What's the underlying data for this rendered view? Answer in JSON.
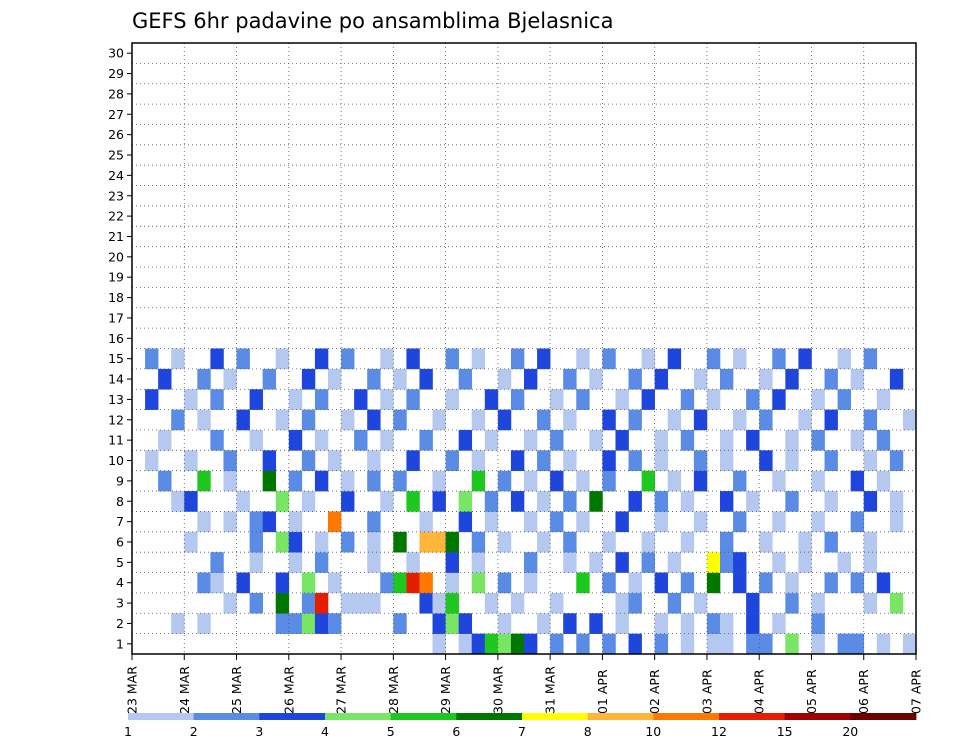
{
  "chart_data": {
    "type": "heatmap",
    "title": "GEFS 6hr padavine po ansamblima Bjelasnica",
    "x_tick_labels": [
      "23 MAR",
      "24 MAR",
      "25 MAR",
      "26 MAR",
      "27 MAR",
      "28 MAR",
      "29 MAR",
      "30 MAR",
      "31 MAR",
      "01 APR",
      "02 APR",
      "03 APR",
      "04 APR",
      "05 APR",
      "06 APR",
      "07 APR"
    ],
    "y_tick_labels": [
      "1",
      "2",
      "3",
      "4",
      "5",
      "6",
      "7",
      "8",
      "9",
      "10",
      "11",
      "12",
      "13",
      "14",
      "15",
      "16",
      "17",
      "18",
      "19",
      "20",
      "21",
      "22",
      "23",
      "24",
      "25",
      "26",
      "27",
      "28",
      "29",
      "30"
    ],
    "ylim": [
      0.5,
      30.5
    ],
    "x_axis": {
      "start": "23 MAR",
      "end": "07 APR",
      "step_hours": 6,
      "steps": 60
    },
    "grid": true,
    "legend_placement": "bottom",
    "legend": {
      "boundaries": [
        "1",
        "2",
        "3",
        "4",
        "5",
        "6",
        "7",
        "8",
        "10",
        "12",
        "15",
        "20"
      ],
      "colors": [
        "#b4c8f0",
        "#5a8ce6",
        "#1e46dc",
        "#78e664",
        "#1ec81e",
        "#007800",
        "#ffff00",
        "#ffb43c",
        "#ff7800",
        "#e61e00",
        "#a00000",
        "#6e0000"
      ]
    },
    "cells": [
      [
        1,
        23,
        0
      ],
      [
        1,
        25,
        0
      ],
      [
        1,
        26,
        2
      ],
      [
        1,
        27,
        4
      ],
      [
        1,
        28,
        3
      ],
      [
        1,
        29,
        5
      ],
      [
        1,
        30,
        2
      ],
      [
        1,
        32,
        1
      ],
      [
        1,
        34,
        1
      ],
      [
        1,
        36,
        1
      ],
      [
        1,
        38,
        2
      ],
      [
        1,
        40,
        1
      ],
      [
        1,
        42,
        0
      ],
      [
        1,
        44,
        0
      ],
      [
        1,
        45,
        0
      ],
      [
        1,
        47,
        1
      ],
      [
        1,
        48,
        1
      ],
      [
        1,
        50,
        3
      ],
      [
        1,
        52,
        0
      ],
      [
        1,
        54,
        1
      ],
      [
        1,
        55,
        1
      ],
      [
        1,
        57,
        0
      ],
      [
        1,
        59,
        0
      ],
      [
        2,
        3,
        0
      ],
      [
        2,
        5,
        0
      ],
      [
        2,
        11,
        1
      ],
      [
        2,
        12,
        1
      ],
      [
        2,
        13,
        3
      ],
      [
        2,
        14,
        2
      ],
      [
        2,
        15,
        1
      ],
      [
        2,
        20,
        1
      ],
      [
        2,
        23,
        2
      ],
      [
        2,
        24,
        3
      ],
      [
        2,
        25,
        2
      ],
      [
        2,
        28,
        0
      ],
      [
        2,
        31,
        0
      ],
      [
        2,
        33,
        2
      ],
      [
        2,
        35,
        2
      ],
      [
        2,
        37,
        0
      ],
      [
        2,
        40,
        0
      ],
      [
        2,
        42,
        0
      ],
      [
        2,
        44,
        1
      ],
      [
        2,
        45,
        0
      ],
      [
        2,
        47,
        2
      ],
      [
        2,
        49,
        0
      ],
      [
        2,
        52,
        1
      ],
      [
        3,
        7,
        0
      ],
      [
        3,
        9,
        1
      ],
      [
        3,
        11,
        5
      ],
      [
        3,
        13,
        1
      ],
      [
        3,
        14,
        9
      ],
      [
        3,
        16,
        0
      ],
      [
        3,
        17,
        0
      ],
      [
        3,
        18,
        0
      ],
      [
        3,
        22,
        2
      ],
      [
        3,
        23,
        0
      ],
      [
        3,
        24,
        4
      ],
      [
        3,
        27,
        0
      ],
      [
        3,
        29,
        0
      ],
      [
        3,
        32,
        0
      ],
      [
        3,
        37,
        0
      ],
      [
        3,
        38,
        1
      ],
      [
        3,
        41,
        1
      ],
      [
        3,
        43,
        0
      ],
      [
        3,
        47,
        2
      ],
      [
        3,
        50,
        1
      ],
      [
        3,
        52,
        0
      ],
      [
        3,
        56,
        0
      ],
      [
        3,
        58,
        3
      ],
      [
        4,
        5,
        1
      ],
      [
        4,
        6,
        0
      ],
      [
        4,
        8,
        2
      ],
      [
        4,
        11,
        2
      ],
      [
        4,
        13,
        3
      ],
      [
        4,
        15,
        0
      ],
      [
        4,
        19,
        1
      ],
      [
        4,
        20,
        4
      ],
      [
        4,
        21,
        9
      ],
      [
        4,
        22,
        8
      ],
      [
        4,
        24,
        0
      ],
      [
        4,
        26,
        3
      ],
      [
        4,
        28,
        1
      ],
      [
        4,
        30,
        0
      ],
      [
        4,
        34,
        4
      ],
      [
        4,
        36,
        1
      ],
      [
        4,
        38,
        0
      ],
      [
        4,
        40,
        2
      ],
      [
        4,
        42,
        1
      ],
      [
        4,
        44,
        5
      ],
      [
        4,
        46,
        2
      ],
      [
        4,
        48,
        1
      ],
      [
        4,
        50,
        0
      ],
      [
        4,
        53,
        1
      ],
      [
        4,
        55,
        1
      ],
      [
        4,
        57,
        2
      ],
      [
        5,
        6,
        1
      ],
      [
        5,
        9,
        0
      ],
      [
        5,
        12,
        0
      ],
      [
        5,
        14,
        1
      ],
      [
        5,
        18,
        0
      ],
      [
        5,
        21,
        0
      ],
      [
        5,
        24,
        2
      ],
      [
        5,
        26,
        0
      ],
      [
        5,
        30,
        1
      ],
      [
        5,
        33,
        0
      ],
      [
        5,
        35,
        0
      ],
      [
        5,
        37,
        2
      ],
      [
        5,
        39,
        1
      ],
      [
        5,
        41,
        0
      ],
      [
        5,
        44,
        6
      ],
      [
        5,
        45,
        1
      ],
      [
        5,
        46,
        2
      ],
      [
        5,
        49,
        0
      ],
      [
        5,
        51,
        0
      ],
      [
        5,
        54,
        0
      ],
      [
        5,
        56,
        0
      ],
      [
        6,
        4,
        0
      ],
      [
        6,
        9,
        1
      ],
      [
        6,
        11,
        3
      ],
      [
        6,
        12,
        2
      ],
      [
        6,
        14,
        0
      ],
      [
        6,
        16,
        1
      ],
      [
        6,
        18,
        0
      ],
      [
        6,
        20,
        5
      ],
      [
        6,
        22,
        7
      ],
      [
        6,
        23,
        7
      ],
      [
        6,
        24,
        5
      ],
      [
        6,
        26,
        1
      ],
      [
        6,
        28,
        0
      ],
      [
        6,
        31,
        0
      ],
      [
        6,
        33,
        1
      ],
      [
        6,
        36,
        0
      ],
      [
        6,
        39,
        0
      ],
      [
        6,
        42,
        0
      ],
      [
        6,
        45,
        1
      ],
      [
        6,
        48,
        0
      ],
      [
        6,
        51,
        0
      ],
      [
        6,
        53,
        1
      ],
      [
        6,
        56,
        0
      ],
      [
        7,
        5,
        0
      ],
      [
        7,
        7,
        0
      ],
      [
        7,
        9,
        1
      ],
      [
        7,
        10,
        2
      ],
      [
        7,
        12,
        0
      ],
      [
        7,
        15,
        8
      ],
      [
        7,
        18,
        1
      ],
      [
        7,
        22,
        0
      ],
      [
        7,
        25,
        2
      ],
      [
        7,
        27,
        0
      ],
      [
        7,
        30,
        0
      ],
      [
        7,
        32,
        1
      ],
      [
        7,
        34,
        0
      ],
      [
        7,
        37,
        2
      ],
      [
        7,
        40,
        0
      ],
      [
        7,
        43,
        0
      ],
      [
        7,
        46,
        1
      ],
      [
        7,
        49,
        0
      ],
      [
        7,
        52,
        0
      ],
      [
        7,
        55,
        1
      ],
      [
        7,
        58,
        0
      ],
      [
        8,
        3,
        0
      ],
      [
        8,
        4,
        2
      ],
      [
        8,
        8,
        0
      ],
      [
        8,
        11,
        3
      ],
      [
        8,
        13,
        0
      ],
      [
        8,
        16,
        2
      ],
      [
        8,
        19,
        0
      ],
      [
        8,
        21,
        4
      ],
      [
        8,
        23,
        2
      ],
      [
        8,
        25,
        3
      ],
      [
        8,
        27,
        1
      ],
      [
        8,
        29,
        2
      ],
      [
        8,
        31,
        0
      ],
      [
        8,
        33,
        1
      ],
      [
        8,
        35,
        5
      ],
      [
        8,
        38,
        2
      ],
      [
        8,
        40,
        1
      ],
      [
        8,
        42,
        0
      ],
      [
        8,
        45,
        2
      ],
      [
        8,
        47,
        0
      ],
      [
        8,
        50,
        1
      ],
      [
        8,
        53,
        0
      ],
      [
        8,
        56,
        2
      ],
      [
        8,
        58,
        0
      ],
      [
        9,
        2,
        1
      ],
      [
        9,
        5,
        4
      ],
      [
        9,
        7,
        0
      ],
      [
        9,
        10,
        5
      ],
      [
        9,
        12,
        1
      ],
      [
        9,
        14,
        2
      ],
      [
        9,
        16,
        0
      ],
      [
        9,
        18,
        1
      ],
      [
        9,
        20,
        1
      ],
      [
        9,
        23,
        0
      ],
      [
        9,
        26,
        4
      ],
      [
        9,
        28,
        1
      ],
      [
        9,
        30,
        0
      ],
      [
        9,
        32,
        2
      ],
      [
        9,
        34,
        0
      ],
      [
        9,
        36,
        1
      ],
      [
        9,
        39,
        4
      ],
      [
        9,
        41,
        0
      ],
      [
        9,
        43,
        2
      ],
      [
        9,
        46,
        1
      ],
      [
        9,
        49,
        0
      ],
      [
        9,
        52,
        0
      ],
      [
        9,
        55,
        2
      ],
      [
        9,
        57,
        0
      ],
      [
        10,
        1,
        0
      ],
      [
        10,
        4,
        0
      ],
      [
        10,
        7,
        1
      ],
      [
        10,
        10,
        2
      ],
      [
        10,
        13,
        1
      ],
      [
        10,
        15,
        0
      ],
      [
        10,
        18,
        0
      ],
      [
        10,
        21,
        2
      ],
      [
        10,
        24,
        1
      ],
      [
        10,
        26,
        0
      ],
      [
        10,
        29,
        2
      ],
      [
        10,
        31,
        1
      ],
      [
        10,
        33,
        0
      ],
      [
        10,
        36,
        2
      ],
      [
        10,
        38,
        1
      ],
      [
        10,
        40,
        0
      ],
      [
        10,
        43,
        1
      ],
      [
        10,
        45,
        0
      ],
      [
        10,
        48,
        2
      ],
      [
        10,
        50,
        0
      ],
      [
        10,
        53,
        1
      ],
      [
        10,
        56,
        0
      ],
      [
        10,
        58,
        1
      ],
      [
        11,
        2,
        0
      ],
      [
        11,
        6,
        1
      ],
      [
        11,
        9,
        0
      ],
      [
        11,
        12,
        2
      ],
      [
        11,
        14,
        0
      ],
      [
        11,
        17,
        1
      ],
      [
        11,
        19,
        0
      ],
      [
        11,
        22,
        1
      ],
      [
        11,
        25,
        2
      ],
      [
        11,
        27,
        0
      ],
      [
        11,
        30,
        0
      ],
      [
        11,
        32,
        1
      ],
      [
        11,
        35,
        0
      ],
      [
        11,
        37,
        2
      ],
      [
        11,
        40,
        0
      ],
      [
        11,
        42,
        1
      ],
      [
        11,
        45,
        0
      ],
      [
        11,
        47,
        2
      ],
      [
        11,
        50,
        0
      ],
      [
        11,
        52,
        1
      ],
      [
        11,
        55,
        0
      ],
      [
        11,
        57,
        1
      ],
      [
        12,
        3,
        1
      ],
      [
        12,
        5,
        0
      ],
      [
        12,
        8,
        2
      ],
      [
        12,
        11,
        0
      ],
      [
        12,
        13,
        1
      ],
      [
        12,
        16,
        0
      ],
      [
        12,
        18,
        2
      ],
      [
        12,
        20,
        1
      ],
      [
        12,
        23,
        0
      ],
      [
        12,
        26,
        0
      ],
      [
        12,
        28,
        2
      ],
      [
        12,
        31,
        1
      ],
      [
        12,
        33,
        0
      ],
      [
        12,
        36,
        2
      ],
      [
        12,
        38,
        1
      ],
      [
        12,
        41,
        0
      ],
      [
        12,
        43,
        2
      ],
      [
        12,
        46,
        0
      ],
      [
        12,
        48,
        1
      ],
      [
        12,
        51,
        0
      ],
      [
        12,
        53,
        2
      ],
      [
        12,
        56,
        1
      ],
      [
        12,
        59,
        0
      ],
      [
        13,
        1,
        2
      ],
      [
        13,
        4,
        0
      ],
      [
        13,
        6,
        1
      ],
      [
        13,
        9,
        2
      ],
      [
        13,
        12,
        0
      ],
      [
        13,
        14,
        1
      ],
      [
        13,
        17,
        2
      ],
      [
        13,
        19,
        0
      ],
      [
        13,
        21,
        1
      ],
      [
        13,
        24,
        0
      ],
      [
        13,
        27,
        2
      ],
      [
        13,
        29,
        1
      ],
      [
        13,
        32,
        0
      ],
      [
        13,
        34,
        1
      ],
      [
        13,
        37,
        0
      ],
      [
        13,
        39,
        2
      ],
      [
        13,
        42,
        1
      ],
      [
        13,
        44,
        0
      ],
      [
        13,
        47,
        1
      ],
      [
        13,
        49,
        2
      ],
      [
        13,
        52,
        0
      ],
      [
        13,
        54,
        1
      ],
      [
        13,
        57,
        0
      ],
      [
        14,
        2,
        2
      ],
      [
        14,
        5,
        1
      ],
      [
        14,
        7,
        0
      ],
      [
        14,
        10,
        1
      ],
      [
        14,
        13,
        2
      ],
      [
        14,
        15,
        0
      ],
      [
        14,
        18,
        1
      ],
      [
        14,
        20,
        0
      ],
      [
        14,
        22,
        2
      ],
      [
        14,
        25,
        1
      ],
      [
        14,
        28,
        0
      ],
      [
        14,
        30,
        2
      ],
      [
        14,
        33,
        1
      ],
      [
        14,
        35,
        0
      ],
      [
        14,
        38,
        1
      ],
      [
        14,
        40,
        2
      ],
      [
        14,
        43,
        0
      ],
      [
        14,
        45,
        1
      ],
      [
        14,
        48,
        0
      ],
      [
        14,
        50,
        2
      ],
      [
        14,
        53,
        1
      ],
      [
        14,
        55,
        0
      ],
      [
        14,
        58,
        2
      ],
      [
        15,
        1,
        1
      ],
      [
        15,
        3,
        0
      ],
      [
        15,
        6,
        2
      ],
      [
        15,
        8,
        1
      ],
      [
        15,
        11,
        0
      ],
      [
        15,
        14,
        2
      ],
      [
        15,
        16,
        1
      ],
      [
        15,
        19,
        0
      ],
      [
        15,
        21,
        2
      ],
      [
        15,
        24,
        1
      ],
      [
        15,
        26,
        0
      ],
      [
        15,
        29,
        1
      ],
      [
        15,
        31,
        2
      ],
      [
        15,
        34,
        0
      ],
      [
        15,
        36,
        1
      ],
      [
        15,
        39,
        0
      ],
      [
        15,
        41,
        2
      ],
      [
        15,
        44,
        1
      ],
      [
        15,
        46,
        0
      ],
      [
        15,
        49,
        1
      ],
      [
        15,
        51,
        2
      ],
      [
        15,
        54,
        0
      ],
      [
        15,
        56,
        1
      ]
    ]
  }
}
